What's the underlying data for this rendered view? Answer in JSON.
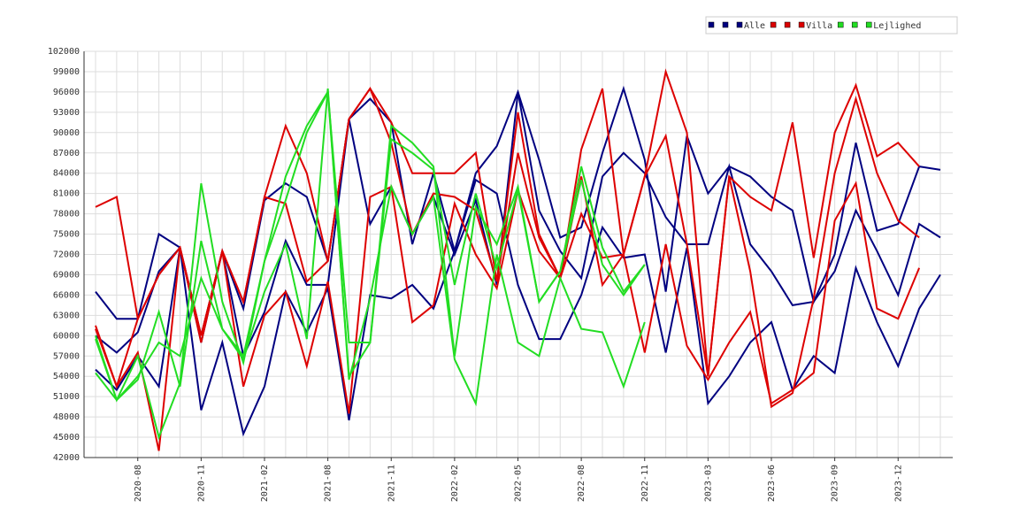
{
  "chart_data": {
    "type": "line",
    "categories": [
      null,
      null,
      "2020-08",
      null,
      null,
      "2020-11",
      null,
      null,
      "2021-02",
      null,
      null,
      "2021-08",
      null,
      null,
      "2021-11",
      null,
      null,
      "2022-02",
      null,
      null,
      "2022-05",
      null,
      null,
      "2022-08",
      null,
      null,
      "2022-11",
      null,
      null,
      "2023-03",
      null,
      null,
      "2023-06",
      null,
      null,
      "2023-09",
      null,
      null,
      "2023-12",
      null,
      null
    ],
    "series": [
      {
        "name": "Alle",
        "color": "#000080",
        "values": [
          [
            66.5,
            62.5,
            62.5,
            75,
            73,
            59,
            72.5,
            64,
            80,
            82.5,
            80.5,
            71,
            92,
            95,
            91.5,
            73.5,
            84,
            72.5,
            84,
            88,
            96,
            86,
            74.5,
            76,
            87,
            96.5,
            86,
            66.5,
            89.5,
            81,
            85,
            83.5,
            80.5,
            78.5,
            65,
            72,
            88.5,
            75.5,
            76.5,
            85,
            84.5
          ],
          [
            60,
            57.5,
            60.5,
            69.5,
            73,
            60,
            72.5,
            57,
            63.5,
            74,
            67.5,
            67.5,
            92,
            76.5,
            82,
            75,
            80.5,
            72,
            80,
            67.5,
            96,
            78.5,
            72.5,
            68.5,
            83.5,
            87,
            84,
            77.5,
            73.5,
            73.5,
            85,
            73.5,
            69.5,
            64.5,
            65,
            69.5,
            78.5,
            72.5,
            66,
            76.5,
            74.5
          ],
          [
            55,
            52,
            57,
            52.5,
            73,
            49,
            59,
            45.5,
            52.5,
            66.5,
            60.5,
            67,
            47.5,
            66,
            65.5,
            67.5,
            64,
            72.5,
            83,
            81,
            67.5,
            59.5,
            59.5,
            66,
            76,
            71.5,
            72,
            57.5,
            73,
            50,
            54,
            59,
            62,
            52,
            57,
            54.5,
            70,
            62,
            55.5,
            64,
            69
          ]
        ]
      },
      {
        "name": "Villa",
        "color": "#dd0000",
        "values": [
          [
            79,
            80.5,
            62.5,
            69,
            73,
            60,
            72.5,
            65,
            80.5,
            91,
            84,
            71,
            92,
            96.5,
            91.5,
            84,
            84,
            84,
            87,
            68,
            93,
            75,
            68.5,
            87.5,
            96.5,
            72,
            83.5,
            99,
            90,
            54,
            83.5,
            80.5,
            78.5,
            91.5,
            71.5,
            90,
            97,
            86.5,
            88.5,
            85,
            null
          ],
          [
            61,
            52.5,
            62.5,
            69,
            73,
            60,
            72.5,
            65,
            80.5,
            79.5,
            68,
            71,
            92,
            96.5,
            88.5,
            75,
            81,
            80.5,
            78.5,
            68,
            87,
            74.5,
            68.5,
            83.5,
            67.5,
            72,
            83.5,
            89.5,
            73.5,
            54,
            83.5,
            69.5,
            49.5,
            51.5,
            65.5,
            84,
            95,
            84,
            77,
            74.5,
            null
          ],
          [
            61.5,
            52.5,
            57.5,
            43,
            73,
            59,
            72.5,
            52.5,
            63,
            66.5,
            55.5,
            68,
            48.5,
            80.5,
            82,
            62,
            64.5,
            79.5,
            72,
            67,
            81.5,
            72.5,
            68.5,
            78,
            71.5,
            72,
            57.5,
            73.5,
            58.5,
            53.5,
            59,
            63.5,
            50,
            52,
            54.5,
            77,
            82.5,
            64,
            62.5,
            70,
            null
          ]
        ]
      },
      {
        "name": "Lejlighed",
        "color": "#22dd22",
        "values": [
          [
            60,
            50.5,
            57,
            45,
            53,
            82.5,
            65,
            56,
            71,
            83.5,
            91,
            96,
            54,
            59,
            89,
            87,
            84.5,
            67.5,
            81,
            70,
            81.5,
            65,
            69.5,
            85,
            73,
            66.5,
            70.5,
            null,
            null,
            null,
            null,
            null,
            null,
            null,
            null,
            null,
            null,
            null,
            null,
            null,
            null
          ],
          [
            59.5,
            50.5,
            53.5,
            63.5,
            52.5,
            74,
            61,
            57,
            71,
            80,
            90,
            96,
            59,
            59,
            91,
            88.5,
            85,
            57,
            79,
            73.5,
            82,
            65,
            69.5,
            83,
            70.5,
            66,
            70.5,
            null,
            null,
            null,
            null,
            null,
            null,
            null,
            null,
            null,
            null,
            null,
            null,
            null,
            null
          ],
          [
            54.5,
            50.5,
            54,
            59,
            57,
            68.5,
            61,
            56.5,
            66.5,
            73.5,
            59.5,
            96.5,
            53.5,
            65.5,
            82,
            75,
            80.5,
            56.5,
            50,
            72,
            59,
            57,
            68.5,
            61,
            60.5,
            52.5,
            62,
            null,
            null,
            null,
            null,
            null,
            null,
            null,
            null,
            null,
            null,
            null,
            null,
            null,
            null
          ]
        ]
      }
    ],
    "ylim": [
      42,
      102
    ],
    "yticks": [
      {
        "value": 42,
        "label": "42000"
      },
      {
        "value": 45,
        "label": "45000"
      },
      {
        "value": 48,
        "label": "48000"
      },
      {
        "value": 51,
        "label": "51000"
      },
      {
        "value": 54,
        "label": "54000"
      },
      {
        "value": 57,
        "label": "57000"
      },
      {
        "value": 60,
        "label": "60000"
      },
      {
        "value": 63,
        "label": "63000"
      },
      {
        "value": 66,
        "label": "66000"
      },
      {
        "value": 69,
        "label": "69000"
      },
      {
        "value": 72,
        "label": "72000"
      },
      {
        "value": 75,
        "label": "75000"
      },
      {
        "value": 78,
        "label": "78000"
      },
      {
        "value": 81,
        "label": "81000"
      },
      {
        "value": 84,
        "label": "84000"
      },
      {
        "value": 87,
        "label": "87000"
      },
      {
        "value": 90,
        "label": "90000"
      },
      {
        "value": 93,
        "label": "93000"
      },
      {
        "value": 96,
        "label": "96000"
      },
      {
        "value": 99,
        "label": "99000"
      },
      {
        "value": 102,
        "label": "102000"
      }
    ],
    "grid": true,
    "legend": "top-right"
  }
}
